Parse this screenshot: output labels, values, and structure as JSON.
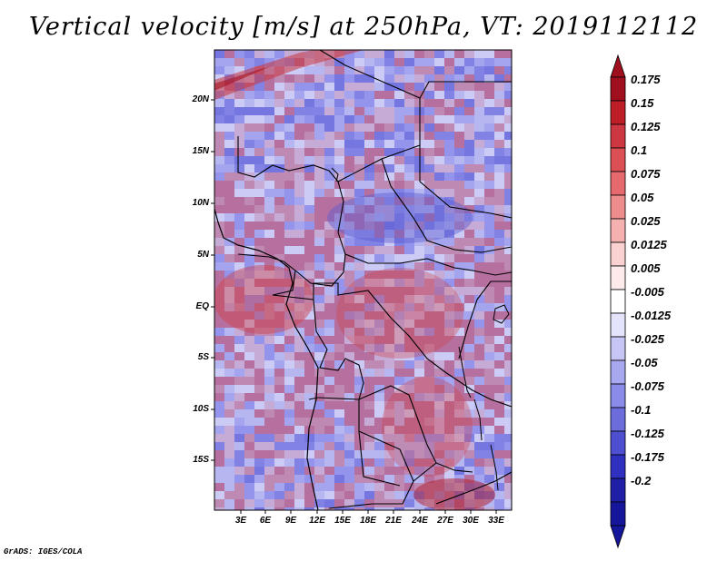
{
  "title": "Vertical velocity [m/s] at 250hPa, VT: 2019112112",
  "credit": "GrADS: IGES/COLA",
  "lat_labels": [
    "20N",
    "15N",
    "10N",
    "5N",
    "EQ",
    "5S",
    "10S",
    "15S"
  ],
  "lon_labels": [
    "3E",
    "6E",
    "9E",
    "12E",
    "15E",
    "18E",
    "21E",
    "24E",
    "27E",
    "30E",
    "33E"
  ],
  "colorbar": {
    "labels": [
      "0.175",
      "0.15",
      "0.125",
      "0.1",
      "0.075",
      "0.05",
      "0.025",
      "0.0125",
      "0.005",
      "-0.005",
      "-0.0125",
      "-0.025",
      "-0.05",
      "-0.075",
      "-0.1",
      "-0.125",
      "-0.175",
      "-0.2"
    ],
    "colors": [
      "#a00f1e",
      "#be1e28",
      "#cd3741",
      "#dc5055",
      "#e6696e",
      "#ee8c8c",
      "#f5b0b0",
      "#fad2d2",
      "#fdebeb",
      "#ffffff",
      "#e3e3fb",
      "#c6c6f6",
      "#a8a8f0",
      "#8a8ae8",
      "#6c6cdc",
      "#4e4ed0",
      "#3030c0",
      "#1e1ea6",
      "#16169a"
    ]
  }
}
